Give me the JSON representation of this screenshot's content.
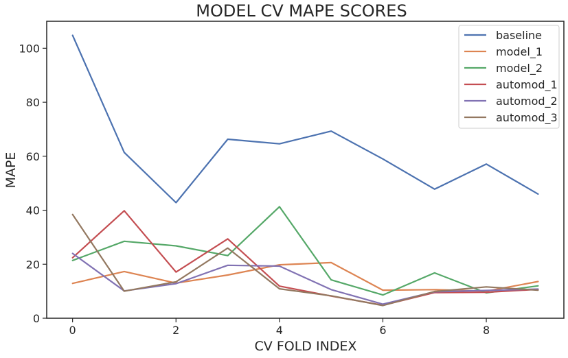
{
  "chart_data": {
    "type": "line",
    "title": "MODEL CV MAPE SCORES",
    "xlabel": "CV FOLD INDEX",
    "ylabel": "MAPE",
    "xlim": [
      -0.5,
      9.5
    ],
    "ylim": [
      0,
      110
    ],
    "xticks": [
      0,
      2,
      4,
      6,
      8
    ],
    "yticks": [
      0,
      20,
      40,
      60,
      80,
      100
    ],
    "grid": false,
    "legend_position": "top-right",
    "x": [
      0,
      1,
      2,
      3,
      4,
      5,
      6,
      7,
      8,
      9
    ],
    "series": [
      {
        "name": "baseline",
        "color": "#4c72b0",
        "values": [
          104.8,
          61.4,
          42.8,
          66.3,
          64.6,
          69.3,
          59.0,
          47.8,
          57.1,
          46.0
        ]
      },
      {
        "name": "model_1",
        "color": "#dd8452",
        "values": [
          12.9,
          17.3,
          13.0,
          16.0,
          19.8,
          20.6,
          10.4,
          10.6,
          10.0,
          13.6
        ]
      },
      {
        "name": "model_2",
        "color": "#55a868",
        "values": [
          21.4,
          28.5,
          26.8,
          23.2,
          41.3,
          14.2,
          8.6,
          16.8,
          9.4,
          12.0
        ]
      },
      {
        "name": "automod_1",
        "color": "#c44e52",
        "values": [
          22.4,
          39.8,
          17.1,
          29.4,
          11.9,
          8.2,
          4.8,
          9.5,
          9.6,
          10.7
        ]
      },
      {
        "name": "automod_2",
        "color": "#8172b3",
        "values": [
          24.0,
          10.1,
          12.8,
          19.6,
          19.3,
          10.6,
          5.2,
          9.8,
          10.3,
          10.8
        ]
      },
      {
        "name": "automod_3",
        "color": "#937860",
        "values": [
          38.4,
          10.0,
          13.5,
          26.0,
          10.9,
          8.3,
          4.7,
          9.9,
          11.6,
          10.4
        ]
      }
    ]
  }
}
